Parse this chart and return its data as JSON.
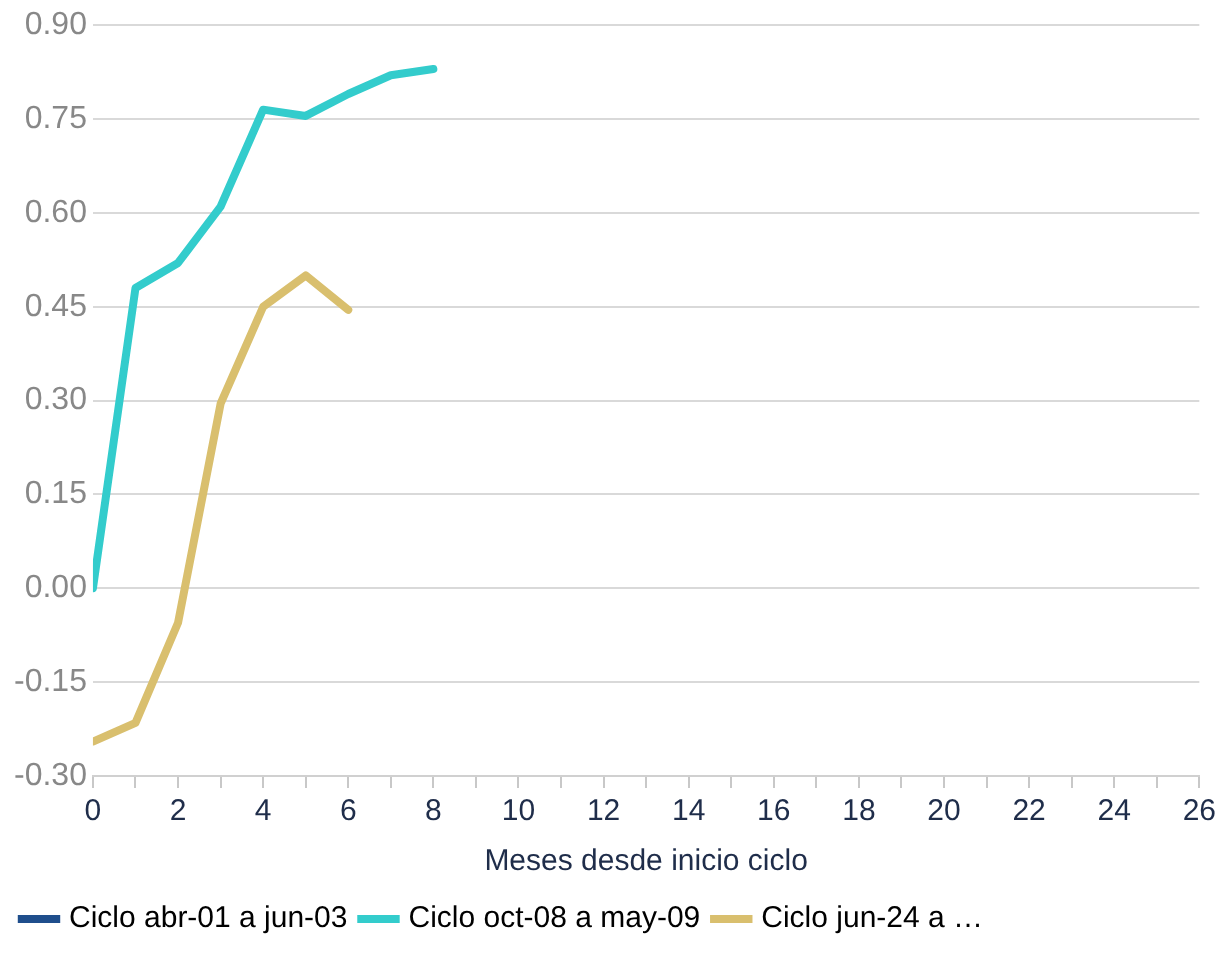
{
  "chart_data": {
    "type": "line",
    "xlabel": "Meses desde inicio ciclo",
    "x": [
      0,
      1,
      2,
      3,
      4,
      5,
      6,
      7,
      8
    ],
    "series": [
      {
        "name": "Ciclo abr-01 a jun-03",
        "color": "#1f4e8c",
        "values": [
          null,
          null,
          null,
          null,
          null,
          null,
          null,
          null,
          null
        ]
      },
      {
        "name": "Ciclo oct-08 a may-09",
        "color": "#33cccc",
        "values": [
          0.0,
          0.48,
          0.52,
          0.61,
          0.765,
          0.755,
          0.79,
          0.82,
          0.83
        ]
      },
      {
        "name": "Ciclo jun-24 a …",
        "color": "#d9bf6e",
        "values": [
          -0.245,
          -0.215,
          -0.055,
          0.295,
          0.45,
          0.5,
          0.445,
          null,
          null
        ]
      }
    ],
    "xlim": [
      0,
      26
    ],
    "xticks": [
      0,
      {
        "value": 1,
        "label": null
      },
      2,
      {
        "value": 3,
        "label": null
      },
      4,
      {
        "value": 5,
        "label": null
      },
      6,
      {
        "value": 7,
        "label": null
      },
      8,
      {
        "value": 9,
        "label": null
      },
      10,
      {
        "value": 11,
        "label": null
      },
      12,
      {
        "value": 13,
        "label": null
      },
      14,
      {
        "value": 15,
        "label": null
      },
      16,
      {
        "value": 17,
        "label": null
      },
      18,
      {
        "value": 19,
        "label": null
      },
      20,
      {
        "value": 21,
        "label": null
      },
      22,
      {
        "value": 23,
        "label": null
      },
      24,
      {
        "value": 25,
        "label": null
      },
      26
    ],
    "ylim": [
      -0.3,
      0.9
    ],
    "yticks": [
      {
        "value": -0.3,
        "label": "-0.30"
      },
      {
        "value": -0.15,
        "label": "-0.15"
      },
      {
        "value": 0,
        "label": "0.00"
      },
      {
        "value": 0.15,
        "label": "0.15"
      },
      {
        "value": 0.3,
        "label": "0.30"
      },
      {
        "value": 0.45,
        "label": "0.45"
      },
      {
        "value": 0.6,
        "label": "0.60"
      },
      {
        "value": 0.75,
        "label": "0.75"
      },
      {
        "value": 0.9,
        "label": "0.90"
      }
    ],
    "grid": "y",
    "legend": "bottom",
    "marker": "none",
    "line_style": "solid"
  }
}
